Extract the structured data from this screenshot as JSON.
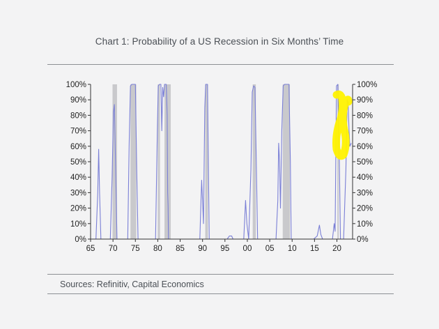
{
  "title": "Chart 1: Probability of a US Recession in Six Months’ Time",
  "source": "Sources: Refinitiv, Capital Economics",
  "colors": {
    "line": "#7a7fd6",
    "recession_band": "#c9c9cc",
    "highlight": "#fff200",
    "background": "#f3f3f4"
  },
  "chart_data": {
    "type": "line",
    "x_ticks": [
      "65",
      "70",
      "75",
      "80",
      "85",
      "90",
      "95",
      "00",
      "05",
      "10",
      "15",
      "20"
    ],
    "y_ticks_left": [
      "0%",
      "10%",
      "20%",
      "30%",
      "40%",
      "50%",
      "60%",
      "70%",
      "80%",
      "90%",
      "100%"
    ],
    "y_ticks_right": [
      "0%",
      "10%",
      "20%",
      "30%",
      "40%",
      "50%",
      "60%",
      "70%",
      "80%",
      "90%",
      "100%"
    ],
    "xlim": [
      1965,
      1967.0,
      2023.5
    ],
    "ylim": [
      0,
      100
    ],
    "grid": false,
    "recession_bands": [
      [
        1969.9,
        1970.9
      ],
      [
        1973.9,
        1975.2
      ],
      [
        1980.0,
        1980.5
      ],
      [
        1981.5,
        1982.9
      ],
      [
        1990.6,
        1991.2
      ],
      [
        2001.2,
        2001.9
      ],
      [
        2007.9,
        2009.5
      ],
      [
        2020.1,
        2020.4
      ]
    ],
    "series": [
      {
        "points": [
          [
            1965.0,
            0
          ],
          [
            1966.2,
            0
          ],
          [
            1966.6,
            30
          ],
          [
            1966.8,
            58
          ],
          [
            1967.0,
            30
          ],
          [
            1967.3,
            0
          ],
          [
            1969.4,
            0
          ],
          [
            1969.8,
            40
          ],
          [
            1970.1,
            82
          ],
          [
            1970.3,
            87
          ],
          [
            1970.6,
            45
          ],
          [
            1970.9,
            0
          ],
          [
            1973.3,
            0
          ],
          [
            1973.6,
            60
          ],
          [
            1973.9,
            99
          ],
          [
            1974.2,
            100
          ],
          [
            1975.0,
            100
          ],
          [
            1975.3,
            45
          ],
          [
            1975.6,
            0
          ],
          [
            1979.5,
            0
          ],
          [
            1979.9,
            70
          ],
          [
            1980.1,
            99
          ],
          [
            1980.4,
            100
          ],
          [
            1980.7,
            100
          ],
          [
            1980.9,
            70
          ],
          [
            1981.1,
            98
          ],
          [
            1981.3,
            92
          ],
          [
            1981.5,
            100
          ],
          [
            1981.9,
            100
          ],
          [
            1982.1,
            80
          ],
          [
            1982.2,
            30
          ],
          [
            1982.3,
            22
          ],
          [
            1982.4,
            0
          ],
          [
            1989.4,
            0
          ],
          [
            1989.6,
            20
          ],
          [
            1989.8,
            38
          ],
          [
            1990.0,
            25
          ],
          [
            1990.2,
            10
          ],
          [
            1990.5,
            85
          ],
          [
            1990.7,
            100
          ],
          [
            1991.1,
            100
          ],
          [
            1991.3,
            50
          ],
          [
            1991.5,
            0
          ],
          [
            1995.5,
            0
          ],
          [
            1996.0,
            2
          ],
          [
            1996.5,
            2
          ],
          [
            1996.8,
            0
          ],
          [
            1999.2,
            0
          ],
          [
            1999.6,
            25
          ],
          [
            1999.9,
            10
          ],
          [
            2000.3,
            0
          ],
          [
            2000.8,
            45
          ],
          [
            2001.1,
            95
          ],
          [
            2001.4,
            99
          ],
          [
            2001.7,
            98
          ],
          [
            2002.0,
            50
          ],
          [
            2002.3,
            0
          ],
          [
            2006.4,
            0
          ],
          [
            2006.8,
            25
          ],
          [
            2007.0,
            62
          ],
          [
            2007.2,
            50
          ],
          [
            2007.4,
            20
          ],
          [
            2007.7,
            70
          ],
          [
            2008.0,
            99
          ],
          [
            2008.3,
            100
          ],
          [
            2009.3,
            100
          ],
          [
            2009.6,
            50
          ],
          [
            2009.8,
            0
          ],
          [
            2014.8,
            0
          ],
          [
            2015.6,
            2
          ],
          [
            2016.1,
            9
          ],
          [
            2016.4,
            3
          ],
          [
            2016.8,
            0
          ],
          [
            2019.0,
            0
          ],
          [
            2019.4,
            10
          ],
          [
            2019.6,
            5
          ],
          [
            2019.9,
            99
          ],
          [
            2020.2,
            100
          ],
          [
            2020.5,
            60
          ],
          [
            2020.8,
            0
          ],
          [
            2021.5,
            0
          ],
          [
            2022.0,
            45
          ],
          [
            2022.3,
            90
          ],
          [
            2022.5,
            88
          ],
          [
            2022.7,
            70
          ],
          [
            2022.9,
            60
          ],
          [
            2023.2,
            62
          ]
        ]
      }
    ]
  }
}
